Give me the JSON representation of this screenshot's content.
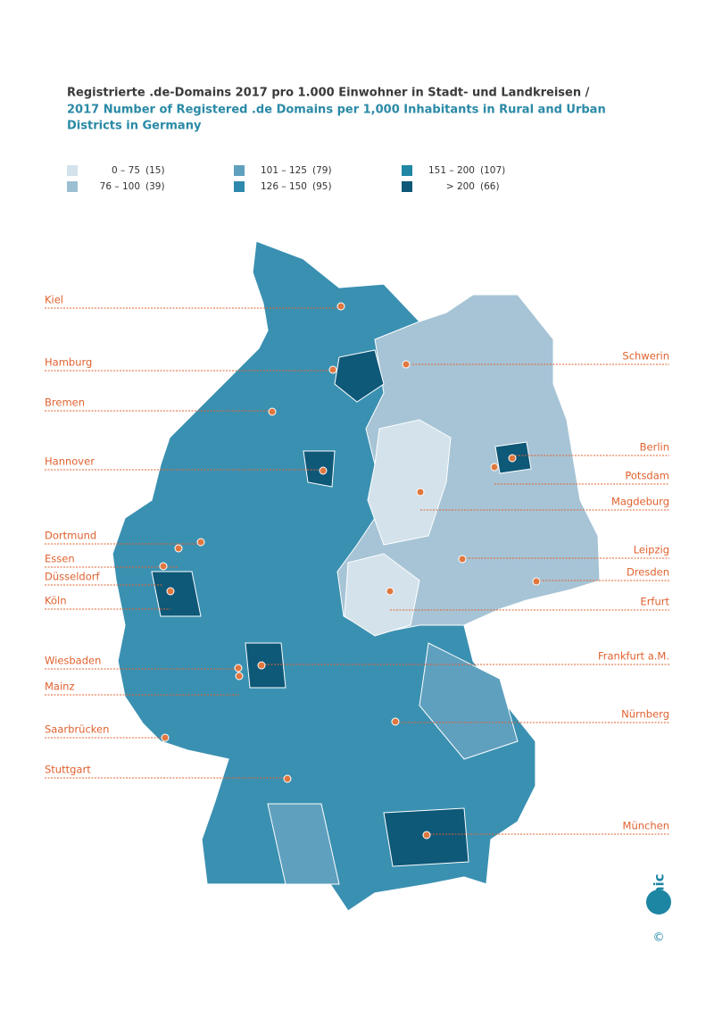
{
  "header": {
    "title_de": "Registrierte .de-Domains 2017 pro 1.000 Einwohner in Stadt- und Landkreisen /",
    "title_en": [
      "2017 Number of Registered .de Domains per 1,000 Inhabitants in Rural and Urban",
      "Districts in Germany"
    ]
  },
  "legend": [
    {
      "range": "0 – 75",
      "count": "(15)",
      "color": "#d3e2eb"
    },
    {
      "range": "76 – 100",
      "count": "(39)",
      "color": "#9dbfd2"
    },
    {
      "range": "101 – 125",
      "count": "(79)",
      "color": "#5fa0bf"
    },
    {
      "range": "126 – 150",
      "count": "(95)",
      "color": "#2f89ad"
    },
    {
      "range": "151 – 200",
      "count": "(107)",
      "color": "#1f86a4"
    },
    {
      "range": "> 200",
      "count": "(66)",
      "color": "#0e5878"
    }
  ],
  "cities": [
    {
      "label": "Kiel",
      "side": "left"
    },
    {
      "label": "Hamburg",
      "side": "left"
    },
    {
      "label": "Bremen",
      "side": "left"
    },
    {
      "label": "Hannover",
      "side": "left"
    },
    {
      "label": "Dortmund",
      "side": "left"
    },
    {
      "label": "Essen",
      "side": "left"
    },
    {
      "label": "Düsseldorf",
      "side": "left"
    },
    {
      "label": "Köln",
      "side": "left"
    },
    {
      "label": "Wiesbaden",
      "side": "left"
    },
    {
      "label": "Mainz",
      "side": "left"
    },
    {
      "label": "Saarbrücken",
      "side": "left"
    },
    {
      "label": "Stuttgart",
      "side": "left"
    },
    {
      "label": "Schwerin",
      "side": "right"
    },
    {
      "label": "Berlin",
      "side": "right"
    },
    {
      "label": "Potsdam",
      "side": "right"
    },
    {
      "label": "Magdeburg",
      "side": "right"
    },
    {
      "label": "Leipzig",
      "side": "right"
    },
    {
      "label": "Dresden",
      "side": "right"
    },
    {
      "label": "Erfurt",
      "side": "right"
    },
    {
      "label": "Frankfurt a.M.",
      "side": "right"
    },
    {
      "label": "Nürnberg",
      "side": "right"
    },
    {
      "label": "München",
      "side": "right"
    }
  ],
  "logo": {
    "text": "denic",
    "copyright": "©"
  }
}
